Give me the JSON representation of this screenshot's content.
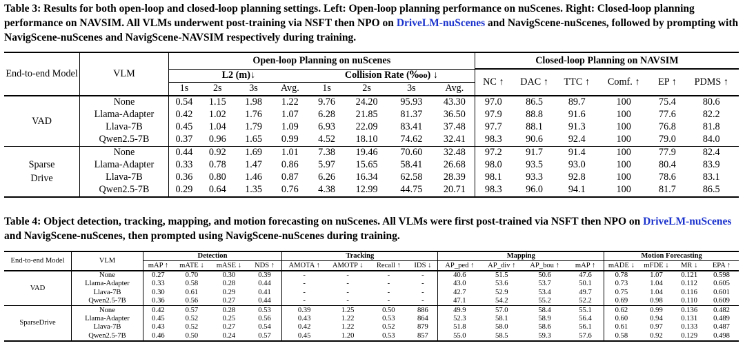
{
  "table3": {
    "caption_prefix": "Table 3: Results for both open-loop and closed-loop planning settings. Left: Open-loop planning performance on nuScenes. Right: Closed-loop planning performance on NAVSIM. All VLMs underwent post-training via NSFT then NPO on ",
    "caption_link": "DriveLM-nuScenes",
    "caption_suffix": " and NavigScene-nuScenes, followed by prompting with NavigScene-nuScenes and NavigScene-NAVSIM respectively during training.",
    "col_model": "End-to-end Model",
    "col_vlm": "VLM",
    "group_open": "Open-loop Planning on nuScenes",
    "group_closed": "Closed-loop Planning on NAVSIM",
    "l2_label": "L2 (m)↓",
    "collision_label": "Collision Rate (‱) ↓",
    "sub_cols": [
      "1s",
      "2s",
      "3s",
      "Avg.",
      "1s",
      "2s",
      "3s",
      "Avg."
    ],
    "closed_cols": [
      "NC ↑",
      "DAC ↑",
      "TTC ↑",
      "Comf. ↑",
      "EP ↑",
      "PDMS ↑"
    ],
    "groups": [
      {
        "model": "VAD",
        "rows": [
          {
            "vlm": "None",
            "vals": [
              "0.54",
              "1.15",
              "1.98",
              "1.22",
              "9.76",
              "24.20",
              "95.93",
              "43.30",
              "97.0",
              "86.5",
              "89.7",
              "100",
              "75.4",
              "80.6"
            ]
          },
          {
            "vlm": "Llama-Adapter",
            "vals": [
              "0.42",
              "1.02",
              "1.76",
              "1.07",
              "6.28",
              "21.85",
              "81.37",
              "36.50",
              "97.9",
              "88.8",
              "91.6",
              "100",
              "77.6",
              "82.2"
            ]
          },
          {
            "vlm": "Llava-7B",
            "vals": [
              "0.45",
              "1.04",
              "1.79",
              "1.09",
              "6.93",
              "22.09",
              "83.41",
              "37.48",
              "97.7",
              "88.1",
              "91.3",
              "100",
              "76.8",
              "81.8"
            ]
          },
          {
            "vlm": "Qwen2.5-7B",
            "vals": [
              "0.37",
              "0.96",
              "1.65",
              "0.99",
              "4.52",
              "18.10",
              "74.62",
              "32.41",
              "98.3",
              "90.6",
              "92.4",
              "100",
              "79.0",
              "84.0"
            ]
          }
        ]
      },
      {
        "model": "Sparse Drive",
        "rows": [
          {
            "vlm": "None",
            "vals": [
              "0.44",
              "0.92",
              "1.69",
              "1.01",
              "7.38",
              "19.46",
              "70.60",
              "32.48",
              "97.2",
              "91.7",
              "91.4",
              "100",
              "77.9",
              "82.4"
            ]
          },
          {
            "vlm": "Llama-Adapter",
            "vals": [
              "0.33",
              "0.78",
              "1.47",
              "0.86",
              "5.97",
              "15.65",
              "58.41",
              "26.68",
              "98.0",
              "93.5",
              "93.0",
              "100",
              "80.4",
              "83.9"
            ]
          },
          {
            "vlm": "Llava-7B",
            "vals": [
              "0.36",
              "0.80",
              "1.46",
              "0.87",
              "6.26",
              "16.34",
              "62.58",
              "28.39",
              "98.1",
              "93.3",
              "92.8",
              "100",
              "78.6",
              "83.1"
            ]
          },
          {
            "vlm": "Qwen2.5-7B",
            "vals": [
              "0.29",
              "0.64",
              "1.35",
              "0.76",
              "4.38",
              "12.99",
              "44.75",
              "20.71",
              "98.3",
              "96.0",
              "94.1",
              "100",
              "81.7",
              "86.5"
            ]
          }
        ]
      }
    ]
  },
  "table4": {
    "caption_prefix": "Table 4: Object detection, tracking, mapping, and motion forecasting on nuScenes. All VLMs were first post-trained via NSFT then NPO on ",
    "caption_link": "DriveLM-nuScenes",
    "caption_suffix": " and NavigScene-nuScenes, then prompted using NavigScene-nuScenes during training.",
    "col_model": "End-to-end Model",
    "col_vlm": "VLM",
    "group_labels": [
      "Detection",
      "Tracking",
      "Mapping",
      "Motion Forecasting"
    ],
    "sub_cols": [
      "mAP ↑",
      "mATE ↓",
      "mASE ↓",
      "NDS ↑",
      "AMOTA ↑",
      "AMOTP ↓",
      "Recall ↑",
      "IDS ↓",
      "AP_ped ↑",
      "AP_div ↑",
      "AP_bou ↑",
      "mAP ↑",
      "mADE ↓",
      "mFDE ↓",
      "MR ↓",
      "EPA ↑"
    ],
    "groups": [
      {
        "model": "VAD",
        "rows": [
          {
            "vlm": "None",
            "vals": [
              "0.27",
              "0.70",
              "0.30",
              "0.39",
              "-",
              "-",
              "-",
              "-",
              "40.6",
              "51.5",
              "50.6",
              "47.6",
              "0.78",
              "1.07",
              "0.121",
              "0.598"
            ]
          },
          {
            "vlm": "Llama-Adapter",
            "vals": [
              "0.33",
              "0.58",
              "0.28",
              "0.44",
              "-",
              "-",
              "-",
              "-",
              "43.0",
              "53.6",
              "53.7",
              "50.1",
              "0.73",
              "1.04",
              "0.112",
              "0.605"
            ]
          },
          {
            "vlm": "Llava-7B",
            "vals": [
              "0.30",
              "0.61",
              "0.29",
              "0.41",
              "-",
              "-",
              "-",
              "-",
              "42.7",
              "52.9",
              "53.4",
              "49.7",
              "0.75",
              "1.04",
              "0.116",
              "0.601"
            ]
          },
          {
            "vlm": "Qwen2.5-7B",
            "vals": [
              "0.36",
              "0.56",
              "0.27",
              "0.44",
              "-",
              "-",
              "-",
              "-",
              "47.1",
              "54.2",
              "55.2",
              "52.2",
              "0.69",
              "0.98",
              "0.110",
              "0.609"
            ]
          }
        ]
      },
      {
        "model": "SparseDrive",
        "rows": [
          {
            "vlm": "None",
            "vals": [
              "0.42",
              "0.57",
              "0.28",
              "0.53",
              "0.39",
              "1.25",
              "0.50",
              "886",
              "49.9",
              "57.0",
              "58.4",
              "55.1",
              "0.62",
              "0.99",
              "0.136",
              "0.482"
            ]
          },
          {
            "vlm": "Llama-Adapter",
            "vals": [
              "0.45",
              "0.52",
              "0.25",
              "0.56",
              "0.43",
              "1.22",
              "0.53",
              "864",
              "52.3",
              "58.1",
              "58.9",
              "56.4",
              "0.60",
              "0.94",
              "0.131",
              "0.489"
            ]
          },
          {
            "vlm": "Llava-7B",
            "vals": [
              "0.43",
              "0.52",
              "0.27",
              "0.54",
              "0.42",
              "1.22",
              "0.52",
              "879",
              "51.8",
              "58.0",
              "58.6",
              "56.1",
              "0.61",
              "0.97",
              "0.133",
              "0.487"
            ]
          },
          {
            "vlm": "Qwen2.5-7B",
            "vals": [
              "0.46",
              "0.50",
              "0.24",
              "0.57",
              "0.45",
              "1.20",
              "0.53",
              "857",
              "55.0",
              "58.5",
              "59.3",
              "57.6",
              "0.58",
              "0.92",
              "0.129",
              "0.498"
            ]
          }
        ]
      }
    ]
  }
}
